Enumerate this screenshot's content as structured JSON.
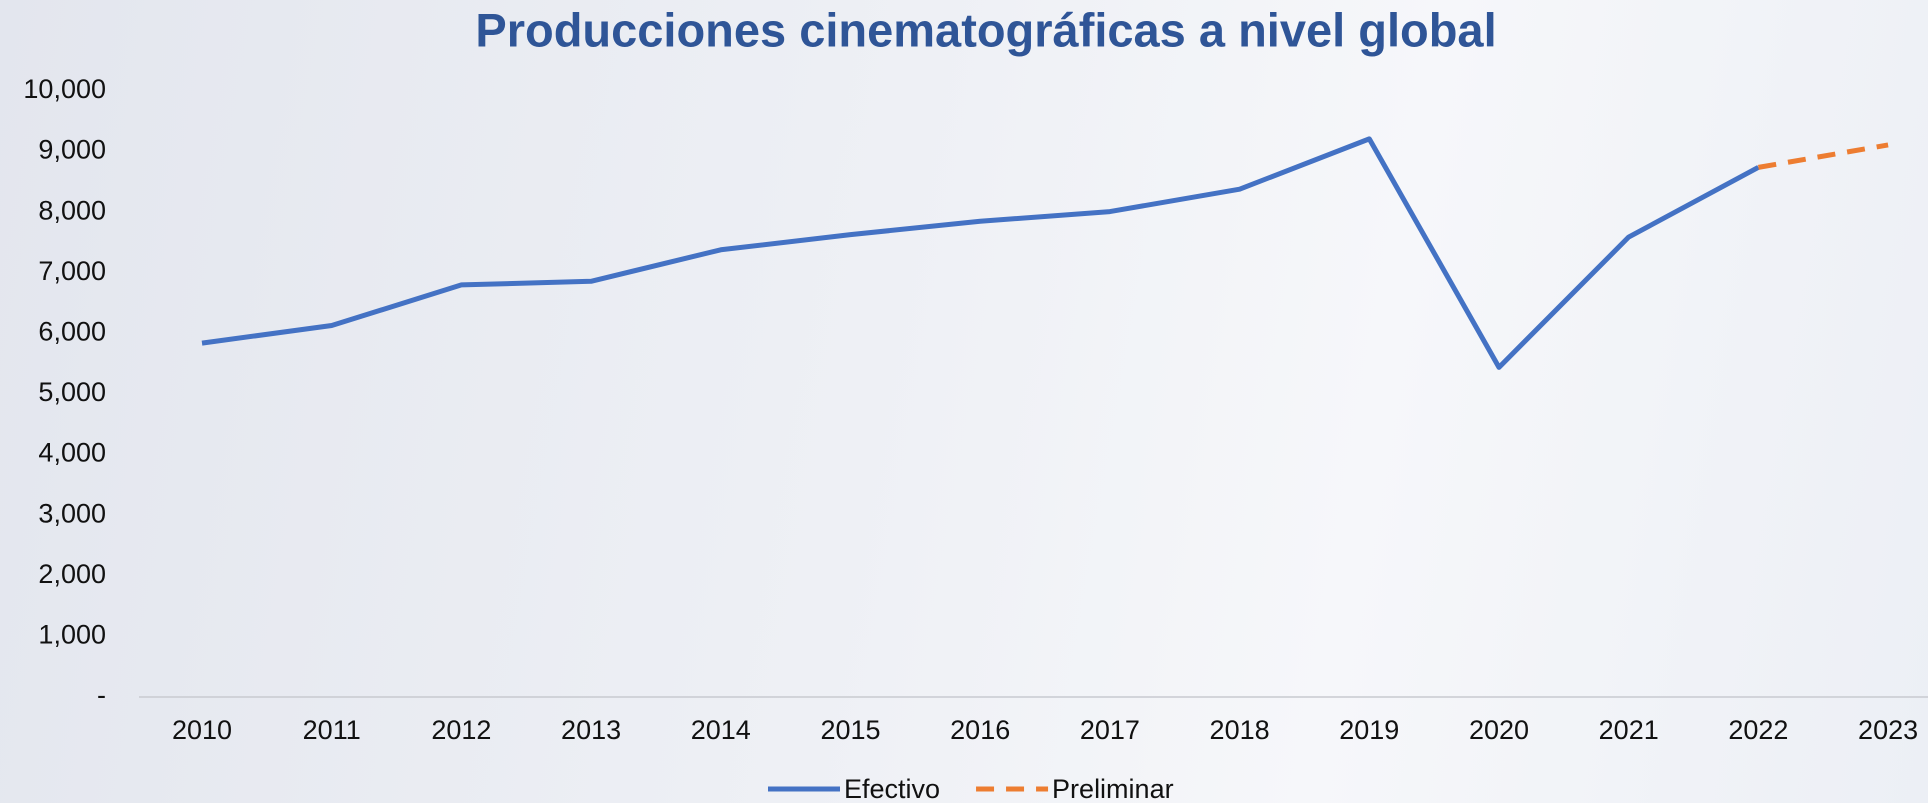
{
  "chart_data": {
    "type": "line",
    "title": "Producciones cinematográficas a nivel global",
    "categories": [
      "2010",
      "2011",
      "2012",
      "2013",
      "2014",
      "2015",
      "2016",
      "2017",
      "2018",
      "2019",
      "2020",
      "2021",
      "2022",
      "2023"
    ],
    "series": [
      {
        "name": "Efectivo",
        "color": "#4472c4",
        "dash": false,
        "values": [
          5840,
          6130,
          6800,
          6860,
          7380,
          7630,
          7850,
          8010,
          8380,
          9210,
          5440,
          7590,
          8740,
          null
        ]
      },
      {
        "name": "Preliminar",
        "color": "#ed7d31",
        "dash": true,
        "values": [
          null,
          null,
          null,
          null,
          null,
          null,
          null,
          null,
          null,
          null,
          null,
          null,
          8740,
          9110
        ]
      }
    ],
    "ylim": [
      0,
      10000
    ],
    "yticks": [
      {
        "value": 0,
        "label": "-"
      },
      {
        "value": 1000,
        "label": "1,000"
      },
      {
        "value": 2000,
        "label": "2,000"
      },
      {
        "value": 3000,
        "label": "3,000"
      },
      {
        "value": 4000,
        "label": "4,000"
      },
      {
        "value": 5000,
        "label": "5,000"
      },
      {
        "value": 6000,
        "label": "6,000"
      },
      {
        "value": 7000,
        "label": "7,000"
      },
      {
        "value": 8000,
        "label": "8,000"
      },
      {
        "value": 9000,
        "label": "9,000"
      },
      {
        "value": 10000,
        "label": "10,000"
      }
    ],
    "grid": false,
    "legend": "bottom"
  }
}
